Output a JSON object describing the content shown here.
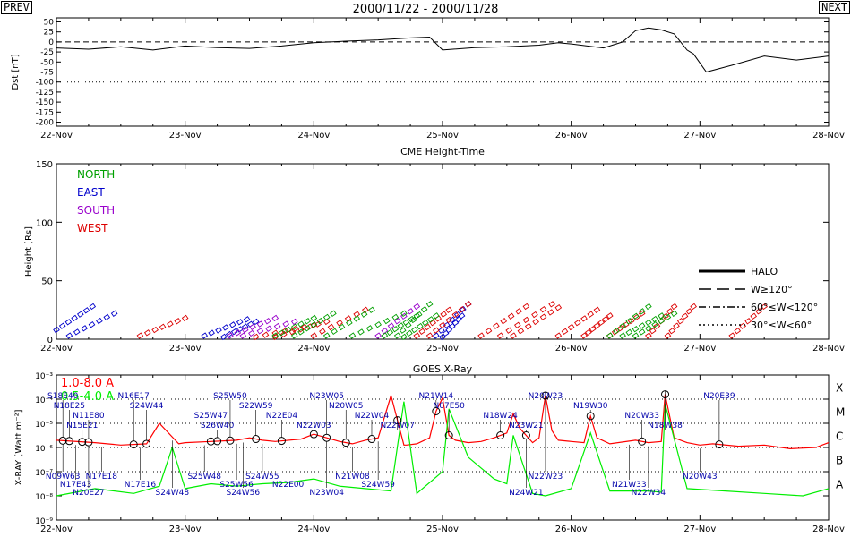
{
  "nav": {
    "prev": "PREV",
    "next": "NEXT"
  },
  "page_title": "2000/11/22 - 2000/11/28",
  "x_tick_labels": [
    "22-Nov",
    "23-Nov",
    "24-Nov",
    "25-Nov",
    "26-Nov",
    "27-Nov",
    "28-Nov"
  ],
  "colors": {
    "north": "#00a000",
    "east": "#0000cc",
    "south": "#9900cc",
    "west": "#dd0000",
    "xray_long": "#ff0000",
    "xray_short": "#00ee00",
    "label_blue": "#0000aa"
  },
  "chart_data": [
    {
      "type": "line",
      "panel": "dst",
      "ylabel": "Dst [nT]",
      "ylim": [
        -210,
        60
      ],
      "yticks": [
        50,
        25,
        0,
        -25,
        -50,
        -75,
        -100,
        -125,
        -150,
        -175,
        -200
      ],
      "reference_lines": [
        {
          "y": 0,
          "style": "dashed"
        },
        {
          "y": -100,
          "style": "dotted"
        }
      ],
      "x": [
        0,
        0.25,
        0.5,
        0.75,
        1,
        1.25,
        1.5,
        1.75,
        2,
        2.25,
        2.5,
        2.75,
        2.9,
        3,
        3.25,
        3.5,
        3.75,
        3.9,
        4,
        4.25,
        4.4,
        4.5,
        4.6,
        4.7,
        4.8,
        4.9,
        4.95,
        5.05,
        5.25,
        5.5,
        5.75,
        6
      ],
      "y": [
        -15,
        -18,
        -12,
        -20,
        -10,
        -14,
        -16,
        -10,
        -2,
        2,
        5,
        10,
        12,
        -20,
        -14,
        -12,
        -8,
        -2,
        -5,
        -15,
        0,
        28,
        35,
        30,
        20,
        -20,
        -30,
        -75,
        -58,
        -35,
        -45,
        -35
      ]
    },
    {
      "type": "scatter",
      "panel": "cme",
      "title": "CME Height-Time",
      "ylabel": "Height [Rs]",
      "ylim": [
        0,
        150
      ],
      "yticks": [
        0,
        50,
        100,
        150
      ],
      "legend_regions": [
        "NORTH",
        "EAST",
        "SOUTH",
        "WEST"
      ],
      "legend_styles": [
        "HALO",
        "W≥120°",
        "60°≤W<120°",
        "30°≤W<60°"
      ],
      "series": [
        {
          "region": "east",
          "tracks": [
            {
              "t0": 0.0,
              "t1": 0.28,
              "h0": 8,
              "h1": 28
            },
            {
              "t0": 0.1,
              "t1": 0.45,
              "h0": 3,
              "h1": 22
            },
            {
              "t0": 1.15,
              "t1": 1.48,
              "h0": 3,
              "h1": 17
            },
            {
              "t0": 1.3,
              "t1": 1.55,
              "h0": 2,
              "h1": 15
            },
            {
              "t0": 2.95,
              "t1": 3.2,
              "h0": 3,
              "h1": 30
            },
            {
              "t0": 3.0,
              "t1": 3.15,
              "h0": 2,
              "h1": 20
            }
          ]
        },
        {
          "region": "south",
          "tracks": [
            {
              "t0": 1.35,
              "t1": 1.7,
              "h0": 3,
              "h1": 18
            },
            {
              "t0": 1.45,
              "t1": 1.85,
              "h0": 3,
              "h1": 15
            },
            {
              "t0": 2.5,
              "t1": 2.8,
              "h0": 3,
              "h1": 28
            }
          ]
        },
        {
          "region": "west",
          "tracks": [
            {
              "t0": 0.65,
              "t1": 1.0,
              "h0": 3,
              "h1": 18
            },
            {
              "t0": 1.55,
              "t1": 2.0,
              "h0": 2,
              "h1": 12
            },
            {
              "t0": 1.7,
              "t1": 2.1,
              "h0": 2,
              "h1": 15
            },
            {
              "t0": 2.0,
              "t1": 2.4,
              "h0": 3,
              "h1": 25
            },
            {
              "t0": 2.8,
              "t1": 3.05,
              "h0": 3,
              "h1": 25
            },
            {
              "t0": 2.9,
              "t1": 3.2,
              "h0": 3,
              "h1": 30
            },
            {
              "t0": 3.3,
              "t1": 3.65,
              "h0": 3,
              "h1": 28
            },
            {
              "t0": 3.45,
              "t1": 3.85,
              "h0": 3,
              "h1": 30
            },
            {
              "t0": 3.55,
              "t1": 3.9,
              "h0": 3,
              "h1": 27
            },
            {
              "t0": 3.9,
              "t1": 4.2,
              "h0": 3,
              "h1": 25
            },
            {
              "t0": 4.1,
              "t1": 4.3,
              "h0": 3,
              "h1": 20
            },
            {
              "t0": 4.3,
              "t1": 4.55,
              "h0": 3,
              "h1": 22
            },
            {
              "t0": 4.6,
              "t1": 4.8,
              "h0": 3,
              "h1": 28
            },
            {
              "t0": 4.75,
              "t1": 4.95,
              "h0": 3,
              "h1": 28
            },
            {
              "t0": 5.25,
              "t1": 5.5,
              "h0": 3,
              "h1": 28
            }
          ]
        },
        {
          "region": "north",
          "tracks": [
            {
              "t0": 1.7,
              "t1": 2.0,
              "h0": 3,
              "h1": 18
            },
            {
              "t0": 1.85,
              "t1": 2.15,
              "h0": 3,
              "h1": 22
            },
            {
              "t0": 2.1,
              "t1": 2.45,
              "h0": 3,
              "h1": 25
            },
            {
              "t0": 2.3,
              "t1": 2.7,
              "h0": 3,
              "h1": 22
            },
            {
              "t0": 2.55,
              "t1": 2.8,
              "h0": 3,
              "h1": 20
            },
            {
              "t0": 2.65,
              "t1": 2.9,
              "h0": 3,
              "h1": 30
            },
            {
              "t0": 2.7,
              "t1": 2.95,
              "h0": 2,
              "h1": 20
            },
            {
              "t0": 4.3,
              "t1": 4.6,
              "h0": 3,
              "h1": 28
            },
            {
              "t0": 4.4,
              "t1": 4.7,
              "h0": 3,
              "h1": 20
            },
            {
              "t0": 4.5,
              "t1": 4.8,
              "h0": 3,
              "h1": 22
            }
          ]
        }
      ]
    },
    {
      "type": "line",
      "panel": "xray",
      "title": "GOES X-Ray",
      "ylabel": "X-RAY [Watt m⁻²]",
      "ylim_log10": [
        -9,
        -3
      ],
      "ytick_labels": [
        "10⁻³",
        "10⁻⁴",
        "10⁻⁵",
        "10⁻⁶",
        "10⁻⁷",
        "10⁻⁸",
        "10⁻⁹"
      ],
      "flare_classes": [
        "X",
        "M",
        "C",
        "B",
        "A"
      ],
      "series": [
        {
          "name": "1.0-8.0 A",
          "color": "#ff0000",
          "x": [
            0,
            0.3,
            0.5,
            0.7,
            0.8,
            0.95,
            1.0,
            1.2,
            1.4,
            1.5,
            1.6,
            1.7,
            1.9,
            2.0,
            2.1,
            2.2,
            2.3,
            2.4,
            2.5,
            2.6,
            2.7,
            2.72,
            2.8,
            2.9,
            2.95,
            3.0,
            3.05,
            3.1,
            3.2,
            3.3,
            3.4,
            3.5,
            3.55,
            3.6,
            3.7,
            3.75,
            3.8,
            3.85,
            3.9,
            4.0,
            4.1,
            4.15,
            4.2,
            4.3,
            4.5,
            4.6,
            4.7,
            4.73,
            4.8,
            4.9,
            5.0,
            5.1,
            5.3,
            5.5,
            5.7,
            5.9,
            6.0
          ],
          "y": [
            -5.7,
            -5.8,
            -5.9,
            -5.85,
            -5.0,
            -5.85,
            -5.8,
            -5.75,
            -5.7,
            -5.6,
            -5.7,
            -5.75,
            -5.65,
            -5.45,
            -5.6,
            -5.75,
            -5.85,
            -5.7,
            -5.6,
            -3.85,
            -5.9,
            -5.9,
            -5.85,
            -5.6,
            -4.5,
            -3.95,
            -5.5,
            -5.7,
            -5.8,
            -5.75,
            -5.6,
            -5.4,
            -4.6,
            -5.2,
            -5.8,
            -5.6,
            -3.85,
            -5.3,
            -5.7,
            -5.75,
            -5.8,
            -4.7,
            -5.6,
            -5.85,
            -5.7,
            -5.8,
            -5.75,
            -3.8,
            -5.6,
            -5.8,
            -5.9,
            -5.85,
            -5.95,
            -5.9,
            -6.05,
            -6.0,
            -5.8
          ]
        },
        {
          "name": "0.5-4.0 A",
          "color": "#00ee00",
          "x": [
            0,
            0.3,
            0.6,
            0.8,
            0.9,
            1.0,
            1.2,
            1.4,
            1.6,
            1.8,
            2.0,
            2.2,
            2.4,
            2.6,
            2.7,
            2.8,
            3.0,
            3.05,
            3.2,
            3.4,
            3.5,
            3.55,
            3.7,
            3.8,
            4.0,
            4.15,
            4.3,
            4.6,
            4.7,
            4.73,
            4.9,
            5.2,
            5.5,
            5.8,
            6.0
          ],
          "y": [
            -8.0,
            -7.7,
            -7.9,
            -7.6,
            -6.0,
            -7.7,
            -7.5,
            -7.6,
            -7.5,
            -7.45,
            -7.3,
            -7.6,
            -7.7,
            -7.8,
            -4.1,
            -7.9,
            -7.0,
            -4.4,
            -6.4,
            -7.3,
            -7.5,
            -5.5,
            -7.9,
            -8.0,
            -7.7,
            -5.4,
            -7.8,
            -7.8,
            -7.85,
            -4.2,
            -7.7,
            -7.8,
            -7.9,
            -8.0,
            -7.7
          ]
        }
      ],
      "flare_labels_upper": [
        {
          "x": 0.05,
          "label": "S18E40"
        },
        {
          "x": 0.1,
          "label": "N18E25"
        },
        {
          "x": 0.25,
          "label": "N11E80"
        },
        {
          "x": 0.2,
          "label": "N15E21"
        },
        {
          "x": 0.6,
          "label": "N16E17"
        },
        {
          "x": 0.7,
          "label": "S24W44"
        },
        {
          "x": 1.2,
          "label": "S25W47"
        },
        {
          "x": 1.25,
          "label": "S26W40"
        },
        {
          "x": 1.35,
          "label": "S25W50"
        },
        {
          "x": 1.55,
          "label": "S22W59"
        },
        {
          "x": 1.75,
          "label": "N22E04"
        },
        {
          "x": 2.0,
          "label": "N22W03"
        },
        {
          "x": 2.1,
          "label": "N23W05"
        },
        {
          "x": 2.25,
          "label": "N20W05"
        },
        {
          "x": 2.45,
          "label": "N22W04"
        },
        {
          "x": 2.65,
          "label": "N22W07"
        },
        {
          "x": 2.95,
          "label": "N21W14"
        },
        {
          "x": 3.05,
          "label": "N07E50"
        },
        {
          "x": 3.45,
          "label": "N18W24"
        },
        {
          "x": 3.65,
          "label": "N23W21"
        },
        {
          "x": 3.8,
          "label": "N20W23"
        },
        {
          "x": 4.15,
          "label": "N19W30"
        },
        {
          "x": 4.55,
          "label": "N20W33"
        },
        {
          "x": 4.73,
          "label": "N18W38"
        },
        {
          "x": 5.15,
          "label": "N20E39"
        }
      ],
      "flare_labels_lower": [
        {
          "x": 0.05,
          "label": "N09W63"
        },
        {
          "x": 0.15,
          "label": "N17E43"
        },
        {
          "x": 0.25,
          "label": "N20E27"
        },
        {
          "x": 0.35,
          "label": "N17E18"
        },
        {
          "x": 0.65,
          "label": "N17E16"
        },
        {
          "x": 0.9,
          "label": "S24W48"
        },
        {
          "x": 1.15,
          "label": "S25W48"
        },
        {
          "x": 1.4,
          "label": "S25W56"
        },
        {
          "x": 1.45,
          "label": "S24W56"
        },
        {
          "x": 1.6,
          "label": "S24W55"
        },
        {
          "x": 1.8,
          "label": "N22E00"
        },
        {
          "x": 2.1,
          "label": "N23W04"
        },
        {
          "x": 2.3,
          "label": "N21W08"
        },
        {
          "x": 2.5,
          "label": "S24W59"
        },
        {
          "x": 3.65,
          "label": "N24W21"
        },
        {
          "x": 3.8,
          "label": "N22W23"
        },
        {
          "x": 4.45,
          "label": "N21W33"
        },
        {
          "x": 4.6,
          "label": "N22W34"
        },
        {
          "x": 5.0,
          "label": "N20W43"
        }
      ]
    }
  ]
}
